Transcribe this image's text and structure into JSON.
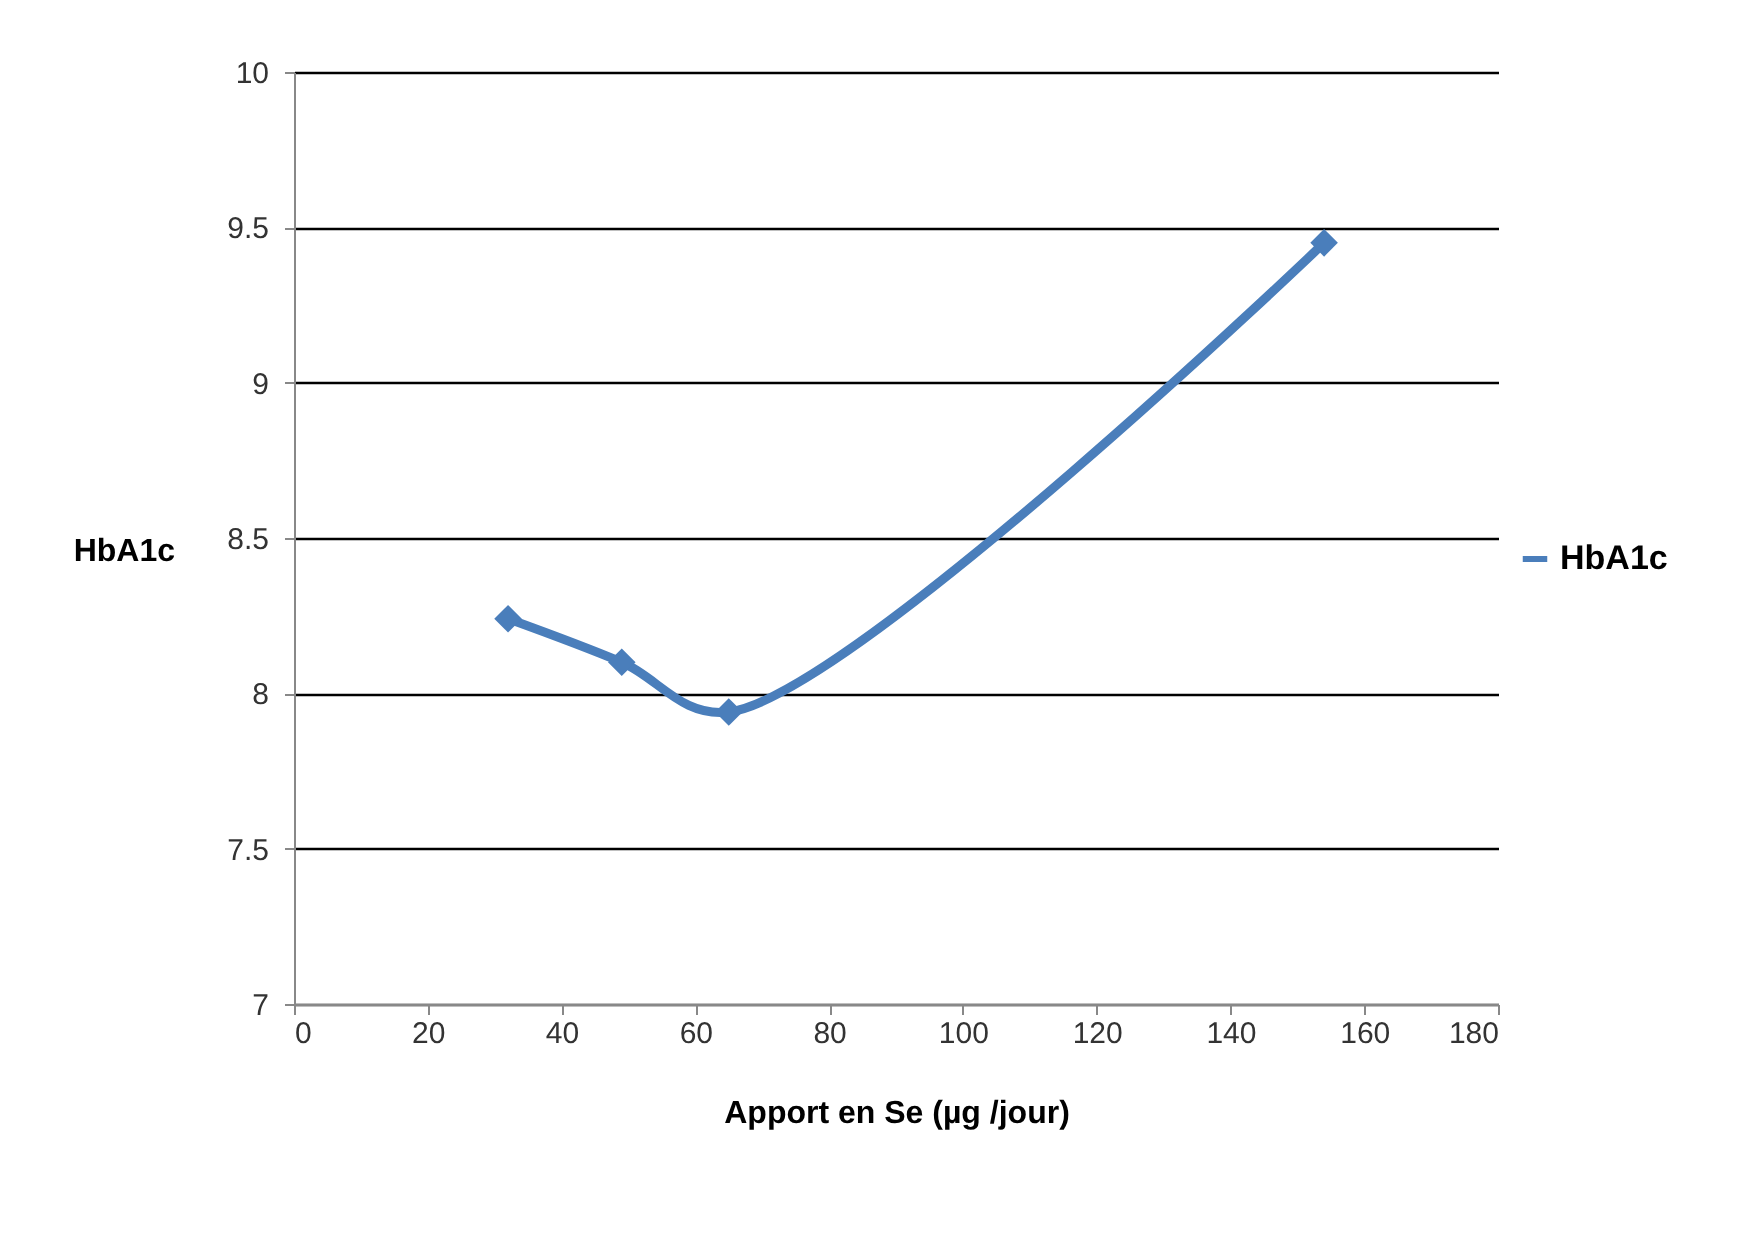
{
  "chart_data": {
    "type": "line",
    "xlabel": "Apport en Se (µg /jour)",
    "ylabel": "HbA1c",
    "x": [
      32,
      49,
      65,
      154
    ],
    "series": [
      {
        "name": "HbA1c",
        "color": "#4a7ebb",
        "values": [
          8.24,
          8.1,
          7.94,
          9.45
        ]
      }
    ],
    "xlim": [
      0,
      180
    ],
    "xticks": [
      0,
      20,
      40,
      60,
      80,
      100,
      120,
      140,
      160,
      180
    ],
    "ylim": [
      7,
      10
    ],
    "yticks": [
      7,
      7.5,
      8,
      8.5,
      9,
      9.5,
      10
    ],
    "grid": "y",
    "legend": "right",
    "marker": "diamond",
    "line_style": "solid"
  }
}
